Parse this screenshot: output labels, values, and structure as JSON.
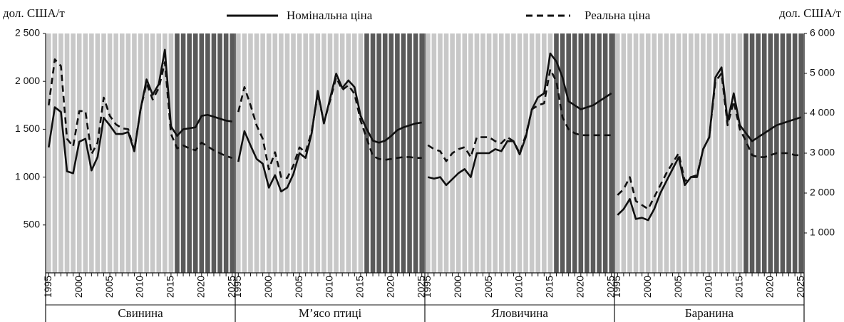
{
  "chart_data": {
    "type": "line",
    "y_label": "дол. США/т",
    "y2_label": "дол. США/т",
    "ylim": [
      0,
      2500
    ],
    "yticks": [
      {
        "value": 500,
        "label": "500"
      },
      {
        "value": 1000,
        "label": "1 000"
      },
      {
        "value": 1500,
        "label": "1 500"
      },
      {
        "value": 2000,
        "label": "2 000"
      },
      {
        "value": 2500,
        "label": "2 500"
      }
    ],
    "y2lim": [
      0,
      6000
    ],
    "y2ticks": [
      {
        "value": 1000,
        "label": "1 000"
      },
      {
        "value": 2000,
        "label": "2 000"
      },
      {
        "value": 3000,
        "label": "3 000"
      },
      {
        "value": 4000,
        "label": "4 000"
      },
      {
        "value": 5000,
        "label": "5 000"
      },
      {
        "value": 6000,
        "label": "6 000"
      }
    ],
    "x": [
      1995,
      1996,
      1997,
      1998,
      1999,
      2000,
      2001,
      2002,
      2003,
      2004,
      2005,
      2006,
      2007,
      2008,
      2009,
      2010,
      2011,
      2012,
      2013,
      2014,
      2015,
      2016,
      2017,
      2018,
      2019,
      2020,
      2021,
      2022,
      2023,
      2024,
      2025
    ],
    "xticks": [
      1995,
      2000,
      2005,
      2010,
      2015,
      2020,
      2025
    ],
    "projection_from": 2016,
    "legend": [
      {
        "name": "Номінальна ціна",
        "color": "#111111",
        "dash": "solid"
      },
      {
        "name": "Реальна ціна",
        "color": "#111111",
        "dash": "dashed"
      }
    ],
    "panels": [
      {
        "title": "Свинина",
        "axis": "y",
        "series": [
          {
            "values": [
              1310,
              1730,
              1680,
              1060,
              1040,
              1370,
              1400,
              1070,
              1210,
              1620,
              1540,
              1450,
              1450,
              1470,
              1270,
              1700,
              2020,
              1860,
              1970,
              2330,
              1530,
              1430,
              1500,
              1510,
              1520,
              1640,
              1650,
              1630,
              1610,
              1590,
              1580
            ]
          },
          {
            "values": [
              1750,
              2230,
              2160,
              1400,
              1320,
              1690,
              1690,
              1240,
              1360,
              1830,
              1640,
              1550,
              1510,
              1500,
              1280,
              1700,
              1980,
              1810,
              1930,
              2200,
              1450,
              1300,
              1330,
              1300,
              1280,
              1360,
              1320,
              1280,
              1250,
              1220,
              1200
            ]
          }
        ]
      },
      {
        "title": "М’ясо птиці",
        "axis": "y",
        "series": [
          {
            "values": [
              1160,
              1480,
              1330,
              1190,
              1140,
              890,
              1020,
              850,
              890,
              1030,
              1250,
              1200,
              1460,
              1900,
              1560,
              1820,
              2080,
              1930,
              2010,
              1940,
              1640,
              1500,
              1380,
              1360,
              1380,
              1430,
              1490,
              1520,
              1540,
              1560,
              1570
            ]
          },
          {
            "values": [
              1680,
              1940,
              1750,
              1540,
              1400,
              1080,
              1260,
              1000,
              990,
              1120,
              1310,
              1260,
              1480,
              1870,
              1570,
              1800,
              2040,
              1910,
              1960,
              1870,
              1590,
              1400,
              1220,
              1190,
              1180,
              1190,
              1200,
              1210,
              1210,
              1200,
              1200
            ]
          }
        ]
      },
      {
        "title": "Яловичина",
        "axis": "y2",
        "series": [
          {
            "values": [
              2400,
              2360,
              2400,
              2200,
              2350,
              2500,
              2600,
              2400,
              3000,
              3000,
              3000,
              3100,
              3050,
              3300,
              3300,
              2970,
              3400,
              4100,
              4400,
              4500,
              5500,
              5300,
              4900,
              4300,
              4200,
              4100,
              4150,
              4200,
              4300,
              4400,
              4500
            ]
          },
          {
            "values": [
              3200,
              3100,
              3050,
              2800,
              3000,
              3100,
              3150,
              2900,
              3400,
              3400,
              3400,
              3300,
              3250,
              3400,
              3300,
              3000,
              3450,
              4100,
              4200,
              4250,
              5100,
              4800,
              3900,
              3600,
              3500,
              3450,
              3450,
              3450,
              3450,
              3450,
              3450
            ]
          }
        ]
      },
      {
        "title": "Баранина",
        "axis": "y2",
        "series": [
          {
            "values": [
              1450,
              1600,
              1850,
              1350,
              1380,
              1320,
              1600,
              2000,
              2300,
              2600,
              2900,
              2200,
              2400,
              2400,
              3100,
              3400,
              4900,
              5150,
              3800,
              4500,
              3700,
              3500,
              3300,
              3400,
              3500,
              3600,
              3700,
              3750,
              3800,
              3850,
              3900
            ]
          },
          {
            "values": [
              1950,
              2100,
              2400,
              1800,
              1700,
              1600,
              1900,
              2200,
              2500,
              2750,
              3000,
              2300,
              2400,
              2450,
              3100,
              3400,
              4800,
              5000,
              3700,
              4300,
              3600,
              3300,
              2950,
              2900,
              2900,
              2950,
              3000,
              3000,
              3000,
              2950,
              2950
            ]
          }
        ]
      }
    ]
  }
}
